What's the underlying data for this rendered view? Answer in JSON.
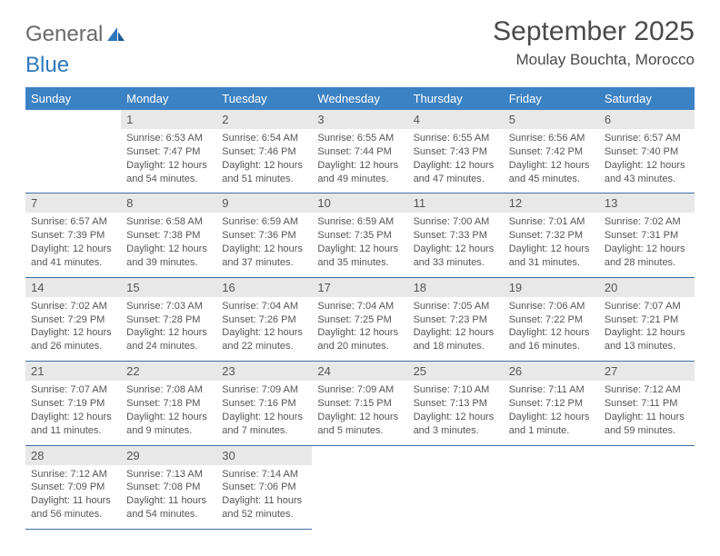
{
  "logo": {
    "word1": "General",
    "word2": "Blue"
  },
  "title": "September 2025",
  "location": "Moulay Bouchta, Morocco",
  "colors": {
    "header_bg": "#3b82c4",
    "header_text": "#ffffff",
    "daynum_bg": "#e8e8e8",
    "cell_border": "#3b6ea0",
    "body_text": "#555555",
    "logo_grey": "#6a6a6a",
    "logo_blue": "#2d78bd"
  },
  "day_headers": [
    "Sunday",
    "Monday",
    "Tuesday",
    "Wednesday",
    "Thursday",
    "Friday",
    "Saturday"
  ],
  "weeks": [
    [
      {
        "n": "",
        "sr": "",
        "ss": "",
        "dl": ""
      },
      {
        "n": "1",
        "sr": "Sunrise: 6:53 AM",
        "ss": "Sunset: 7:47 PM",
        "dl": "Daylight: 12 hours and 54 minutes."
      },
      {
        "n": "2",
        "sr": "Sunrise: 6:54 AM",
        "ss": "Sunset: 7:46 PM",
        "dl": "Daylight: 12 hours and 51 minutes."
      },
      {
        "n": "3",
        "sr": "Sunrise: 6:55 AM",
        "ss": "Sunset: 7:44 PM",
        "dl": "Daylight: 12 hours and 49 minutes."
      },
      {
        "n": "4",
        "sr": "Sunrise: 6:55 AM",
        "ss": "Sunset: 7:43 PM",
        "dl": "Daylight: 12 hours and 47 minutes."
      },
      {
        "n": "5",
        "sr": "Sunrise: 6:56 AM",
        "ss": "Sunset: 7:42 PM",
        "dl": "Daylight: 12 hours and 45 minutes."
      },
      {
        "n": "6",
        "sr": "Sunrise: 6:57 AM",
        "ss": "Sunset: 7:40 PM",
        "dl": "Daylight: 12 hours and 43 minutes."
      }
    ],
    [
      {
        "n": "7",
        "sr": "Sunrise: 6:57 AM",
        "ss": "Sunset: 7:39 PM",
        "dl": "Daylight: 12 hours and 41 minutes."
      },
      {
        "n": "8",
        "sr": "Sunrise: 6:58 AM",
        "ss": "Sunset: 7:38 PM",
        "dl": "Daylight: 12 hours and 39 minutes."
      },
      {
        "n": "9",
        "sr": "Sunrise: 6:59 AM",
        "ss": "Sunset: 7:36 PM",
        "dl": "Daylight: 12 hours and 37 minutes."
      },
      {
        "n": "10",
        "sr": "Sunrise: 6:59 AM",
        "ss": "Sunset: 7:35 PM",
        "dl": "Daylight: 12 hours and 35 minutes."
      },
      {
        "n": "11",
        "sr": "Sunrise: 7:00 AM",
        "ss": "Sunset: 7:33 PM",
        "dl": "Daylight: 12 hours and 33 minutes."
      },
      {
        "n": "12",
        "sr": "Sunrise: 7:01 AM",
        "ss": "Sunset: 7:32 PM",
        "dl": "Daylight: 12 hours and 31 minutes."
      },
      {
        "n": "13",
        "sr": "Sunrise: 7:02 AM",
        "ss": "Sunset: 7:31 PM",
        "dl": "Daylight: 12 hours and 28 minutes."
      }
    ],
    [
      {
        "n": "14",
        "sr": "Sunrise: 7:02 AM",
        "ss": "Sunset: 7:29 PM",
        "dl": "Daylight: 12 hours and 26 minutes."
      },
      {
        "n": "15",
        "sr": "Sunrise: 7:03 AM",
        "ss": "Sunset: 7:28 PM",
        "dl": "Daylight: 12 hours and 24 minutes."
      },
      {
        "n": "16",
        "sr": "Sunrise: 7:04 AM",
        "ss": "Sunset: 7:26 PM",
        "dl": "Daylight: 12 hours and 22 minutes."
      },
      {
        "n": "17",
        "sr": "Sunrise: 7:04 AM",
        "ss": "Sunset: 7:25 PM",
        "dl": "Daylight: 12 hours and 20 minutes."
      },
      {
        "n": "18",
        "sr": "Sunrise: 7:05 AM",
        "ss": "Sunset: 7:23 PM",
        "dl": "Daylight: 12 hours and 18 minutes."
      },
      {
        "n": "19",
        "sr": "Sunrise: 7:06 AM",
        "ss": "Sunset: 7:22 PM",
        "dl": "Daylight: 12 hours and 16 minutes."
      },
      {
        "n": "20",
        "sr": "Sunrise: 7:07 AM",
        "ss": "Sunset: 7:21 PM",
        "dl": "Daylight: 12 hours and 13 minutes."
      }
    ],
    [
      {
        "n": "21",
        "sr": "Sunrise: 7:07 AM",
        "ss": "Sunset: 7:19 PM",
        "dl": "Daylight: 12 hours and 11 minutes."
      },
      {
        "n": "22",
        "sr": "Sunrise: 7:08 AM",
        "ss": "Sunset: 7:18 PM",
        "dl": "Daylight: 12 hours and 9 minutes."
      },
      {
        "n": "23",
        "sr": "Sunrise: 7:09 AM",
        "ss": "Sunset: 7:16 PM",
        "dl": "Daylight: 12 hours and 7 minutes."
      },
      {
        "n": "24",
        "sr": "Sunrise: 7:09 AM",
        "ss": "Sunset: 7:15 PM",
        "dl": "Daylight: 12 hours and 5 minutes."
      },
      {
        "n": "25",
        "sr": "Sunrise: 7:10 AM",
        "ss": "Sunset: 7:13 PM",
        "dl": "Daylight: 12 hours and 3 minutes."
      },
      {
        "n": "26",
        "sr": "Sunrise: 7:11 AM",
        "ss": "Sunset: 7:12 PM",
        "dl": "Daylight: 12 hours and 1 minute."
      },
      {
        "n": "27",
        "sr": "Sunrise: 7:12 AM",
        "ss": "Sunset: 7:11 PM",
        "dl": "Daylight: 11 hours and 59 minutes."
      }
    ],
    [
      {
        "n": "28",
        "sr": "Sunrise: 7:12 AM",
        "ss": "Sunset: 7:09 PM",
        "dl": "Daylight: 11 hours and 56 minutes."
      },
      {
        "n": "29",
        "sr": "Sunrise: 7:13 AM",
        "ss": "Sunset: 7:08 PM",
        "dl": "Daylight: 11 hours and 54 minutes."
      },
      {
        "n": "30",
        "sr": "Sunrise: 7:14 AM",
        "ss": "Sunset: 7:06 PM",
        "dl": "Daylight: 11 hours and 52 minutes."
      },
      {
        "n": "",
        "sr": "",
        "ss": "",
        "dl": ""
      },
      {
        "n": "",
        "sr": "",
        "ss": "",
        "dl": ""
      },
      {
        "n": "",
        "sr": "",
        "ss": "",
        "dl": ""
      },
      {
        "n": "",
        "sr": "",
        "ss": "",
        "dl": ""
      }
    ]
  ]
}
